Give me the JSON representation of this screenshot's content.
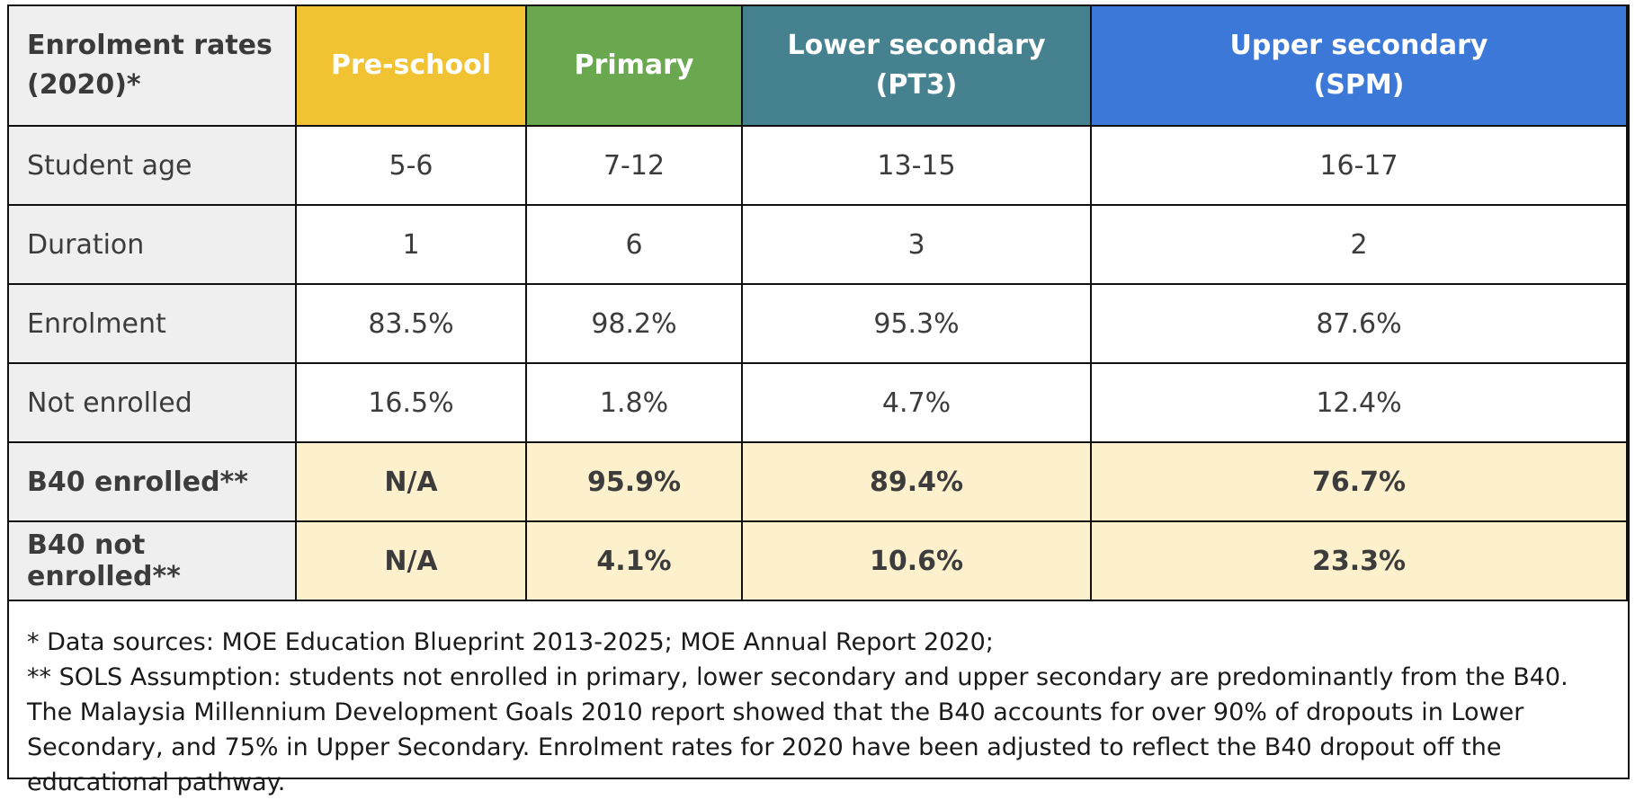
{
  "table": {
    "corner_label": "Enrolment rates (2020)*",
    "columns": [
      {
        "label_line1": "Pre-school",
        "label_line2": "",
        "color": "#f1c232"
      },
      {
        "label_line1": "Primary",
        "label_line2": "",
        "color": "#6aa84f"
      },
      {
        "label_line1": "Lower secondary",
        "label_line2": "(PT3)",
        "color": "#45818e"
      },
      {
        "label_line1": "Upper secondary",
        "label_line2": "(SPM)",
        "color": "#3c78d8"
      }
    ],
    "rows": [
      {
        "label": "Student age",
        "values": [
          "5-6",
          "7-12",
          "13-15",
          "16-17"
        ],
        "highlight": false
      },
      {
        "label": "Duration",
        "values": [
          "1",
          "6",
          "3",
          "2"
        ],
        "highlight": false
      },
      {
        "label": "Enrolment",
        "values": [
          "83.5%",
          "98.2%",
          "95.3%",
          "87.6%"
        ],
        "highlight": false
      },
      {
        "label": "Not enrolled",
        "values": [
          "16.5%",
          "1.8%",
          "4.7%",
          "12.4%"
        ],
        "highlight": false
      },
      {
        "label": "B40 enrolled**",
        "values": [
          "N/A",
          "95.9%",
          "89.4%",
          "76.7%"
        ],
        "highlight": true
      },
      {
        "label": "B40 not enrolled**",
        "values": [
          "N/A",
          "4.1%",
          "10.6%",
          "23.3%"
        ],
        "highlight": true
      }
    ],
    "highlight_color": "#fdf0cd",
    "label_bg": "#efefef"
  },
  "notes": {
    "line1": "* Data sources: MOE Education Blueprint 2013-2025; MOE Annual Report 2020;",
    "line2": "** SOLS Assumption: students not enrolled in primary, lower secondary and upper secondary are predominantly from the B40. The Malaysia Millennium Development Goals 2010 report showed that the B40 accounts for over 90% of dropouts in Lower Secondary, and 75% in Upper Secondary. Enrolment rates for 2020 have been adjusted to reflect the B40 dropout off the educational pathway."
  }
}
